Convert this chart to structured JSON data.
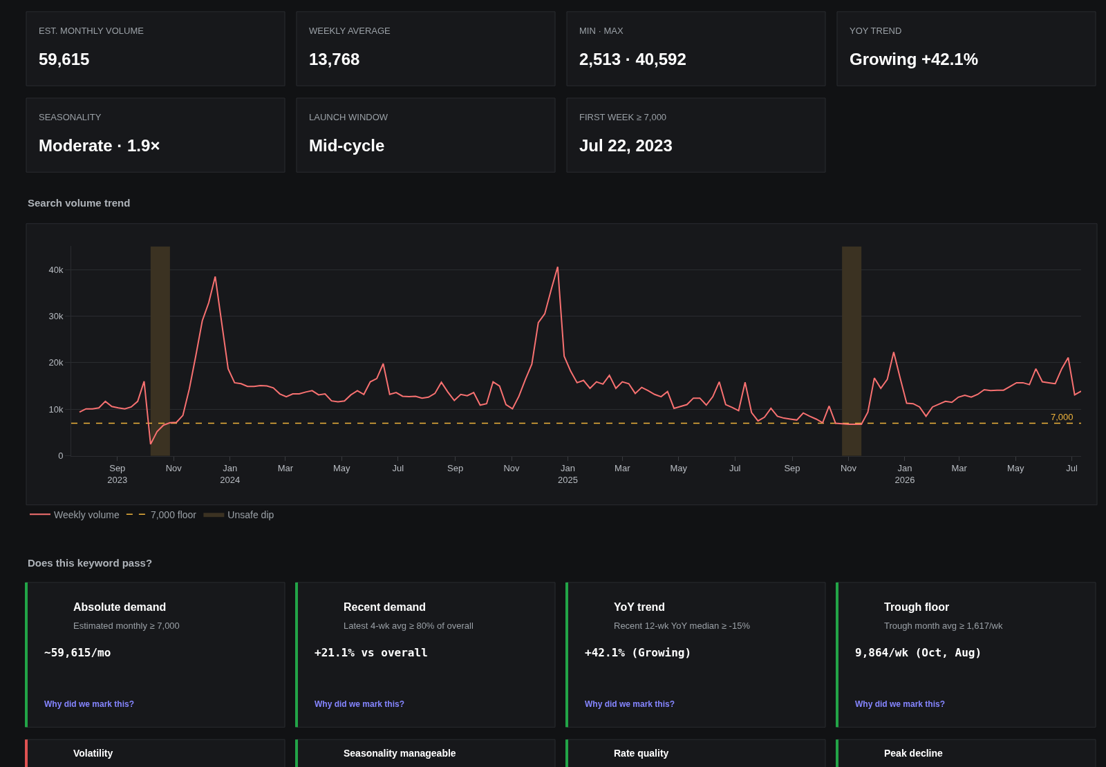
{
  "chart_data": [
    {
      "type": "other",
      "annotations": [
        "EST. MONTHLY VOLUME",
        "59,615",
        "WEEKLY AVERAGE",
        "13,768",
        "MIN · MAX",
        "2,513 · 40,592",
        "YOY TREND",
        "Growing +42.1%",
        "SEASONALITY",
        "Moderate · 1.9×",
        "LAUNCH WINDOW",
        "Mid-cycle",
        "FIRST WEEK ≥ 7,000",
        "Jul 22, 2023"
      ]
    },
    {
      "type": "line",
      "title": "Search volume trend",
      "x": [
        "2023-07-22",
        "2023-07-29",
        "2023-08-05",
        "2023-08-12",
        "2023-08-19",
        "2023-08-26",
        "2023-09-02",
        "2023-09-09",
        "2023-09-16",
        "2023-09-23",
        "2023-09-30",
        "2023-10-07",
        "2023-10-14",
        "2023-10-21",
        "2023-10-28",
        "2023-11-04",
        "2023-11-11",
        "2023-11-18",
        "2023-11-25",
        "2023-12-02",
        "2023-12-09",
        "2023-12-16",
        "2023-12-23",
        "2023-12-30",
        "2024-01-06",
        "2024-01-13",
        "2024-01-20",
        "2024-01-27",
        "2024-02-03",
        "2024-02-10",
        "2024-02-17",
        "2024-02-24",
        "2024-03-02",
        "2024-03-09",
        "2024-03-16",
        "2024-03-23",
        "2024-03-30",
        "2024-04-06",
        "2024-04-13",
        "2024-04-20",
        "2024-04-27",
        "2024-05-04",
        "2024-05-11",
        "2024-05-18",
        "2024-05-25",
        "2024-06-01",
        "2024-06-08",
        "2024-06-15",
        "2024-06-22",
        "2024-06-29",
        "2024-07-06",
        "2024-07-13",
        "2024-07-20",
        "2024-07-27",
        "2024-08-03",
        "2024-08-10",
        "2024-08-17",
        "2024-08-24",
        "2024-08-31",
        "2024-09-07",
        "2024-09-14",
        "2024-09-21",
        "2024-09-28",
        "2024-10-05",
        "2024-10-12",
        "2024-10-19",
        "2024-10-26",
        "2024-11-02",
        "2024-11-09",
        "2024-11-16",
        "2024-11-23",
        "2024-11-30",
        "2024-12-07",
        "2024-12-14",
        "2024-12-21",
        "2024-12-28",
        "2025-01-04",
        "2025-01-11",
        "2025-01-18",
        "2025-01-25",
        "2025-02-01",
        "2025-02-08",
        "2025-02-15",
        "2025-02-22",
        "2025-03-01",
        "2025-03-08",
        "2025-03-15",
        "2025-03-22",
        "2025-03-29",
        "2025-04-05",
        "2025-04-12",
        "2025-04-19",
        "2025-04-26",
        "2025-05-03",
        "2025-05-10",
        "2025-05-17",
        "2025-05-24",
        "2025-05-31",
        "2025-06-07",
        "2025-06-14",
        "2025-06-21",
        "2025-06-28",
        "2025-07-05",
        "2025-07-12",
        "2025-07-19",
        "2025-07-26",
        "2025-08-02",
        "2025-08-09",
        "2025-08-16",
        "2025-08-23",
        "2025-08-30",
        "2025-09-06",
        "2025-09-13",
        "2025-09-20",
        "2025-09-27",
        "2025-10-04",
        "2025-10-11",
        "2025-10-18",
        "2025-10-25",
        "2025-11-01",
        "2025-11-08",
        "2025-11-15",
        "2025-11-22",
        "2025-11-29",
        "2025-12-06",
        "2025-12-13",
        "2025-12-20",
        "2025-12-27",
        "2026-01-03",
        "2026-01-10",
        "2026-01-17",
        "2026-01-24",
        "2026-01-31",
        "2026-02-07",
        "2026-02-14",
        "2026-02-21",
        "2026-02-28",
        "2026-03-07",
        "2026-03-14",
        "2026-03-21",
        "2026-03-28",
        "2026-04-04",
        "2026-04-11",
        "2026-04-18",
        "2026-04-25",
        "2026-05-02",
        "2026-05-09",
        "2026-05-16",
        "2026-05-23",
        "2026-05-30",
        "2026-06-06",
        "2026-06-13",
        "2026-06-20",
        "2026-06-27",
        "2026-07-04",
        "2026-07-11"
      ],
      "series": [
        {
          "name": "Weekly volume",
          "color": "#f87171",
          "values": [
            9400,
            10100,
            10100,
            10300,
            11700,
            10600,
            10300,
            10100,
            10500,
            11700,
            16000,
            2500,
            5200,
            6600,
            7100,
            7200,
            8700,
            14400,
            21500,
            29000,
            32900,
            38500,
            28600,
            18700,
            15700,
            15500,
            14900,
            14900,
            15100,
            15000,
            14600,
            13300,
            12700,
            13300,
            13300,
            13700,
            14000,
            13100,
            13300,
            11800,
            11600,
            11800,
            13100,
            14000,
            13200,
            15900,
            16600,
            19800,
            13200,
            13600,
            12800,
            12700,
            12800,
            12400,
            12600,
            13400,
            15800,
            13700,
            11900,
            13200,
            12900,
            13600,
            10900,
            11200,
            15900,
            15000,
            11000,
            10100,
            12800,
            16400,
            19700,
            28600,
            30500,
            35700,
            40600,
            21400,
            18200,
            15700,
            16200,
            14500,
            15900,
            15400,
            17300,
            14500,
            15900,
            15500,
            13400,
            14700,
            14000,
            13200,
            12700,
            13800,
            10200,
            10600,
            11000,
            12400,
            12400,
            10900,
            12700,
            15900,
            11000,
            10400,
            9700,
            15800,
            9300,
            7500,
            8300,
            10200,
            8500,
            8100,
            7900,
            7700,
            9200,
            8500,
            7900,
            7100,
            10700,
            7000,
            6900,
            6800,
            6800,
            6800,
            9400,
            16700,
            14500,
            16400,
            22300,
            16700,
            11300,
            11200,
            10500,
            8500,
            10500,
            11100,
            11700,
            11500,
            12600,
            13000,
            12600,
            13200,
            14200,
            14000,
            14100,
            14100,
            14900,
            15700,
            15700,
            15300,
            18700,
            15900,
            15700,
            15500,
            18700,
            21100,
            13100,
            13900
          ]
        }
      ],
      "xlim": [
        "2023-07-13",
        "2026-07-11"
      ],
      "xticks": [
        {
          "value": "2023-09-01",
          "label": "Sep\n2023"
        },
        {
          "value": "2023-11-01",
          "label": "Nov"
        },
        {
          "value": "2024-01-01",
          "label": "Jan\n2024"
        },
        {
          "value": "2024-03-01",
          "label": "Mar"
        },
        {
          "value": "2024-05-01",
          "label": "May"
        },
        {
          "value": "2024-07-01",
          "label": "Jul"
        },
        {
          "value": "2024-09-01",
          "label": "Sep"
        },
        {
          "value": "2024-11-01",
          "label": "Nov"
        },
        {
          "value": "2025-01-01",
          "label": "Jan\n2025"
        },
        {
          "value": "2025-03-01",
          "label": "Mar"
        },
        {
          "value": "2025-05-01",
          "label": "May"
        },
        {
          "value": "2025-07-01",
          "label": "Jul"
        },
        {
          "value": "2025-09-01",
          "label": "Sep"
        },
        {
          "value": "2025-11-01",
          "label": "Nov"
        },
        {
          "value": "2026-01-01",
          "label": "Jan\n2026"
        },
        {
          "value": "2026-03-01",
          "label": "Mar"
        },
        {
          "value": "2026-05-01",
          "label": "May"
        },
        {
          "value": "2026-07-01",
          "label": "Jul"
        }
      ],
      "ylim": [
        0,
        45000
      ],
      "yticks": [
        0,
        {
          "value": 10000,
          "label": "10k"
        },
        {
          "value": 20000,
          "label": "20k"
        },
        {
          "value": 30000,
          "label": "30k"
        },
        {
          "value": 40000,
          "label": "40k"
        }
      ],
      "grid": "y",
      "ref_lines": [
        {
          "axis": "y",
          "value": 7000,
          "label": "7,000 floor",
          "color": "#f0b43c",
          "line_style": "dashed"
        }
      ],
      "bands": [
        {
          "axis": "x",
          "from": "2023-10-07",
          "to": "2023-10-28",
          "label": "Unsafe dip",
          "color": "#3b3222"
        },
        {
          "axis": "x",
          "from": "2025-10-25",
          "to": "2025-11-15",
          "color": "#3b3222"
        }
      ],
      "annotations": [
        {
          "text": "7,000",
          "x": "2026-07-04",
          "y": 7000
        }
      ],
      "legend": "bottom left",
      "marker": "none",
      "line_style": "solid"
    },
    {
      "type": "other",
      "title": "Does this keyword pass?",
      "colors": [
        "#22a447",
        "#22a447",
        "#22a447",
        "#22a447",
        "#e05252",
        "#22a447",
        "#22a447",
        "#22a447"
      ],
      "annotations": [
        "Absolute demand",
        "Estimated monthly ≥ 7,000",
        "~59,615/mo",
        "Why did we mark this?",
        "Recent demand",
        "Latest 4-wk avg ≥ 80% of overall",
        "+21.1% vs overall",
        "Why did we mark this?",
        "YoY trend",
        "Recent 12-wk YoY median ≥ -15%",
        "+42.1% (Growing)",
        "Why did we mark this?",
        "Trough floor",
        "Trough month avg ≥ 1,617/wk",
        "9,864/wk (Oct, Aug)",
        "Why did we mark this?",
        "Volatility",
        "Seasonality manageable",
        "Rate quality",
        "Peak decline"
      ]
    }
  ]
}
